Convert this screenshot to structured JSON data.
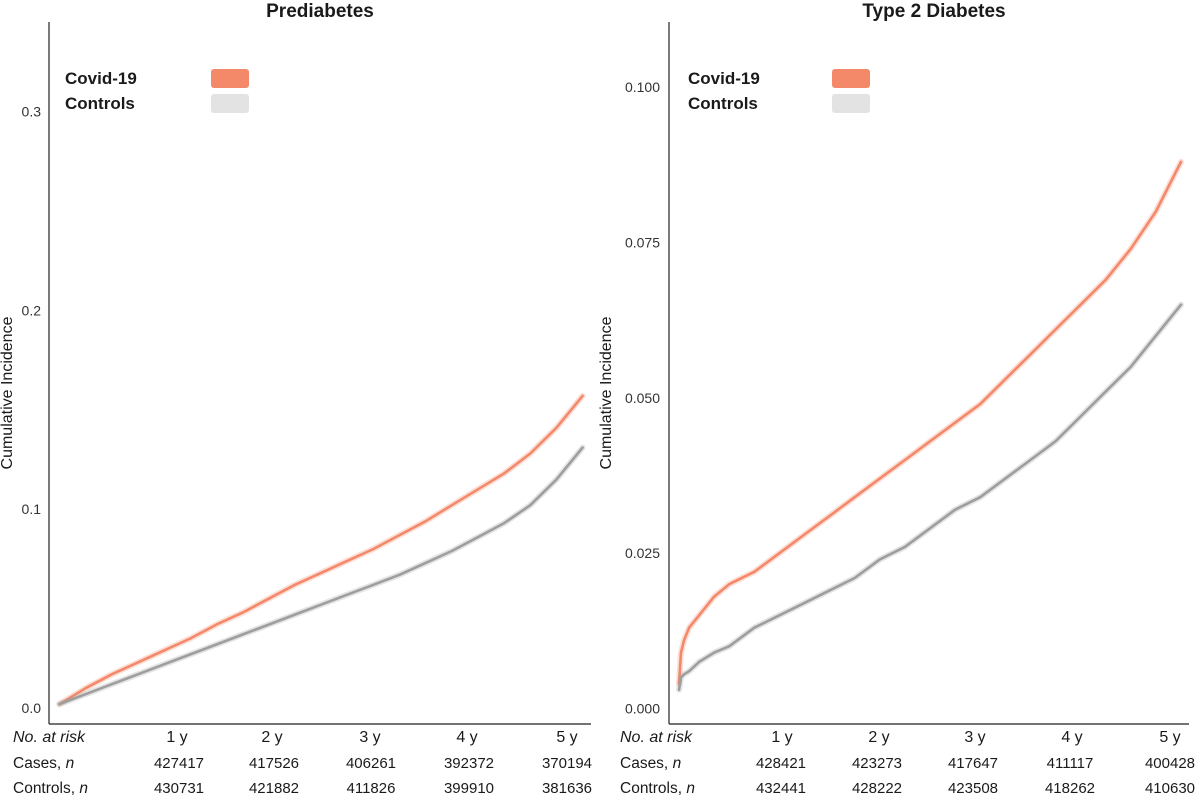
{
  "chart_data": [
    {
      "type": "line",
      "title": "Prediabetes",
      "xlabel": "",
      "ylabel": "Cumulative Incidence",
      "ylim": [
        -0.008,
        0.345
      ],
      "xlim": [
        -0.1,
        5.08
      ],
      "yticks": [
        0.0,
        0.1,
        0.2,
        0.3
      ],
      "ytick_labels": [
        "0.0",
        "0.1",
        "0.2",
        "0.3"
      ],
      "legend_position": "top-left",
      "grid": false,
      "series": [
        {
          "name": "Covid-19",
          "color": "#F4896A",
          "x": [
            0,
            0.25,
            0.5,
            0.75,
            1,
            1.25,
            1.5,
            1.75,
            2,
            2.25,
            2.5,
            2.75,
            3,
            3.25,
            3.5,
            3.75,
            4,
            4.25,
            4.5,
            4.75,
            5
          ],
          "y": [
            0.002,
            0.01,
            0.017,
            0.023,
            0.029,
            0.035,
            0.042,
            0.048,
            0.055,
            0.062,
            0.068,
            0.074,
            0.08,
            0.087,
            0.094,
            0.102,
            0.11,
            0.118,
            0.128,
            0.141,
            0.157
          ]
        },
        {
          "name": "Controls",
          "color": "#9E9E9E",
          "x": [
            0,
            0.25,
            0.5,
            0.75,
            1,
            1.25,
            1.5,
            1.75,
            2,
            2.25,
            2.5,
            2.75,
            3,
            3.25,
            3.5,
            3.75,
            4,
            4.25,
            4.5,
            4.75,
            5
          ],
          "y": [
            0.002,
            0.007,
            0.012,
            0.017,
            0.022,
            0.027,
            0.032,
            0.037,
            0.042,
            0.047,
            0.052,
            0.057,
            0.062,
            0.067,
            0.073,
            0.079,
            0.086,
            0.093,
            0.102,
            0.115,
            0.131
          ]
        }
      ],
      "risk_table": {
        "header": "No. at risk",
        "times": [
          "1 y",
          "2 y",
          "3 y",
          "4 y",
          "5 y"
        ],
        "rows": [
          {
            "label": "Cases, ",
            "label_italic": "n",
            "values": [
              "427417",
              "417526",
              "406261",
              "392372",
              "370194"
            ]
          },
          {
            "label": "Controls, ",
            "label_italic": "n",
            "values": [
              "430731",
              "421882",
              "411826",
              "399910",
              "381636"
            ]
          }
        ]
      }
    },
    {
      "type": "line",
      "title": "Type 2 Diabetes",
      "xlabel": "",
      "ylabel": "Cumulative Incidence",
      "ylim": [
        -0.0025,
        0.1105
      ],
      "xlim": [
        -0.1,
        5.08
      ],
      "yticks": [
        0.0,
        0.025,
        0.05,
        0.075,
        0.1
      ],
      "ytick_labels": [
        "0.000",
        "0.025",
        "0.050",
        "0.075",
        "0.100"
      ],
      "legend_position": "top-left",
      "grid": false,
      "series": [
        {
          "name": "Covid-19",
          "color": "#F4896A",
          "x": [
            0,
            0.02,
            0.05,
            0.1,
            0.2,
            0.35,
            0.5,
            0.75,
            1,
            1.25,
            1.5,
            1.75,
            2,
            2.25,
            2.5,
            2.75,
            3,
            3.25,
            3.5,
            3.75,
            4,
            4.25,
            4.5,
            4.75,
            5
          ],
          "y": [
            0.004,
            0.009,
            0.011,
            0.013,
            0.015,
            0.018,
            0.02,
            0.022,
            0.025,
            0.028,
            0.031,
            0.034,
            0.037,
            0.04,
            0.043,
            0.046,
            0.049,
            0.053,
            0.057,
            0.061,
            0.065,
            0.069,
            0.074,
            0.08,
            0.088
          ]
        },
        {
          "name": "Controls",
          "color": "#9E9E9E",
          "x": [
            0,
            0.02,
            0.05,
            0.1,
            0.2,
            0.35,
            0.5,
            0.75,
            1,
            1.25,
            1.5,
            1.75,
            2,
            2.25,
            2.5,
            2.75,
            3,
            3.25,
            3.5,
            3.75,
            4,
            4.25,
            4.5,
            4.75,
            5
          ],
          "y": [
            0.003,
            0.005,
            0.0055,
            0.006,
            0.0075,
            0.009,
            0.01,
            0.013,
            0.015,
            0.017,
            0.019,
            0.021,
            0.024,
            0.026,
            0.029,
            0.032,
            0.034,
            0.037,
            0.04,
            0.043,
            0.047,
            0.051,
            0.055,
            0.06,
            0.065
          ]
        }
      ],
      "risk_table": {
        "header": "No. at risk",
        "times": [
          "1 y",
          "2 y",
          "3 y",
          "4 y",
          "5 y"
        ],
        "rows": [
          {
            "label": "Cases, ",
            "label_italic": "n",
            "values": [
              "428421",
              "423273",
              "417647",
              "411117",
              "400428"
            ]
          },
          {
            "label": "Controls, ",
            "label_italic": "n",
            "values": [
              "432441",
              "428222",
              "423508",
              "418262",
              "410630"
            ]
          }
        ]
      }
    }
  ]
}
